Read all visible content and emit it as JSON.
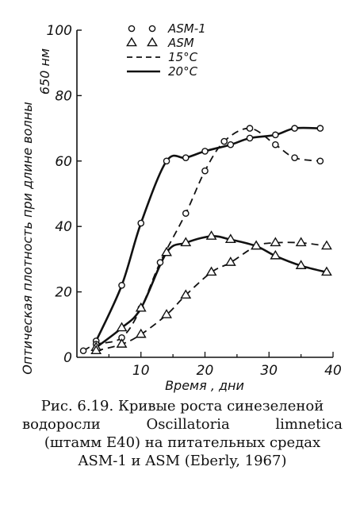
{
  "chart_data": {
    "type": "line",
    "xlabel": "Время , дни",
    "ylabel": "Оптическая плотность при длине волны",
    "ylabel_sub": "650 нм",
    "xlim": [
      0,
      40
    ],
    "ylim": [
      0,
      100
    ],
    "x_ticks": [
      "10",
      "20",
      "30",
      "40"
    ],
    "y_ticks": [
      "0",
      "20",
      "40",
      "60",
      "80",
      "100"
    ],
    "legend": [
      {
        "marker": "circle",
        "label": "ASM-1"
      },
      {
        "marker": "triangle",
        "label": "ASM"
      },
      {
        "line": "dashed",
        "label": "15°C"
      },
      {
        "line": "solid",
        "label": "20°C"
      }
    ],
    "series": [
      {
        "medium": "ASM-1",
        "temperature": "20°C",
        "line": "solid",
        "marker": "circle",
        "x": [
          3,
          7,
          10,
          14,
          17,
          20,
          24,
          27,
          31,
          34,
          38
        ],
        "y": [
          5,
          22,
          41,
          60,
          61,
          63,
          65,
          67,
          68,
          70,
          70
        ]
      },
      {
        "medium": "ASM-1",
        "temperature": "15°C",
        "line": "dashed",
        "marker": "circle",
        "x": [
          1,
          3,
          7,
          10,
          13,
          17,
          20,
          23,
          27,
          31,
          34,
          38
        ],
        "y": [
          2,
          4,
          6,
          15,
          29,
          44,
          57,
          66,
          70,
          65,
          61,
          60
        ]
      },
      {
        "medium": "ASM",
        "temperature": "20°C",
        "line": "solid",
        "marker": "triangle",
        "x": [
          3,
          7,
          10,
          14,
          17,
          21,
          24,
          28,
          31,
          35,
          39
        ],
        "y": [
          3,
          9,
          15,
          32,
          35,
          37,
          36,
          34,
          31,
          28,
          26
        ]
      },
      {
        "medium": "ASM",
        "temperature": "15°C",
        "line": "dashed",
        "marker": "triangle",
        "x": [
          3,
          7,
          10,
          14,
          17,
          21,
          24,
          28,
          31,
          35,
          39
        ],
        "y": [
          2,
          4,
          7,
          13,
          19,
          26,
          29,
          34,
          35,
          35,
          34
        ]
      }
    ]
  },
  "caption": {
    "line1": "Рис. 6.19. Кривые роста синезеленой",
    "line2": [
      "водоросли",
      "Oscillatoria",
      "limnetica"
    ],
    "line3": "(штамм E40) на питательных средах",
    "line4": "ASM-1 и ASM (Eberly, 1967)"
  }
}
